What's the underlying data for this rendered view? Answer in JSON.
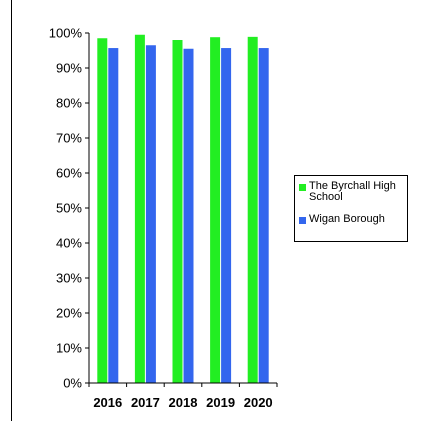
{
  "chart_data": {
    "type": "bar",
    "title": "",
    "xlabel": "",
    "ylabel": "",
    "categories": [
      "2016",
      "2017",
      "2018",
      "2019",
      "2020"
    ],
    "series": [
      {
        "name": "The Byrchall High School",
        "color": "#22ee22",
        "values": [
          98.5,
          99.5,
          98.0,
          98.8,
          98.9
        ]
      },
      {
        "name": "Wigan Borough",
        "color": "#3366ee",
        "values": [
          95.7,
          96.5,
          95.5,
          95.7,
          95.7
        ]
      }
    ],
    "ylim": [
      0,
      100
    ],
    "yticks": [
      "0%",
      "10%",
      "20%",
      "30%",
      "40%",
      "50%",
      "60%",
      "70%",
      "80%",
      "90%",
      "100%"
    ],
    "grid": false,
    "legend_position": "right"
  }
}
